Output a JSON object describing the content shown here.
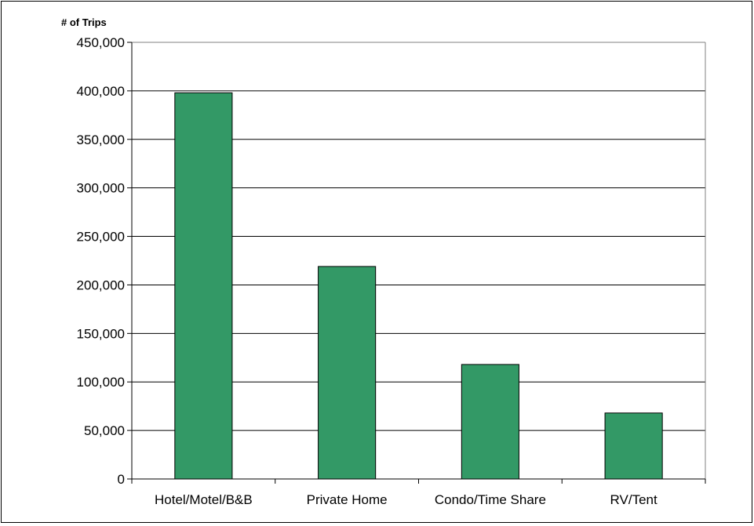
{
  "chart_data": {
    "type": "bar",
    "title": "",
    "xlabel": "",
    "ylabel": "# of Trips",
    "categories": [
      "Hotel/Motel/B&B",
      "Private Home",
      "Condo/Time Share",
      "RV/Tent"
    ],
    "values": [
      398000,
      219000,
      118000,
      68000
    ],
    "ylim": [
      0,
      450000
    ],
    "ytick_step": 50000,
    "ytick_labels": [
      "0",
      "50,000",
      "100,000",
      "150,000",
      "200,000",
      "250,000",
      "300,000",
      "350,000",
      "400,000",
      "450,000"
    ],
    "grid": "horizontal",
    "legend": "none",
    "colors": {
      "bar_fill": "#339966",
      "bar_stroke": "#000000",
      "gridline": "#000000",
      "plot_border": "#808080"
    }
  }
}
